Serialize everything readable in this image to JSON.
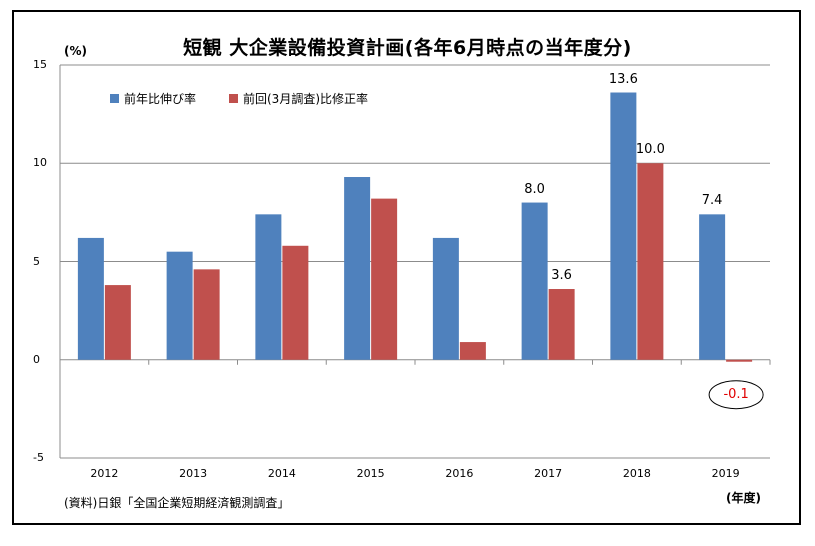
{
  "chart_data": {
    "type": "bar",
    "title": "短観 大企業設備投資計画(各年6月時点の当年度分)",
    "ylabel": "(%)",
    "xlabel": "(年度)",
    "ylim": [
      -5,
      15
    ],
    "yticks": [
      15,
      10,
      5,
      0,
      -5
    ],
    "grid": true,
    "legend_position": "top-left",
    "categories": [
      "2012",
      "2013",
      "2014",
      "2015",
      "2016",
      "2017",
      "2018",
      "2019"
    ],
    "series": [
      {
        "name": "前年比伸び率",
        "color": "#4F81BD",
        "values": [
          6.2,
          5.5,
          7.4,
          9.3,
          6.2,
          8.0,
          13.6,
          7.4
        ]
      },
      {
        "name": "前回(3月調査)比修正率",
        "color": "#C0504D",
        "values": [
          3.8,
          4.6,
          5.8,
          8.2,
          0.9,
          3.6,
          10.0,
          -0.1
        ]
      }
    ],
    "data_labels": [
      {
        "text": "8.0",
        "category": "2017",
        "series": 0
      },
      {
        "text": "3.6",
        "category": "2017",
        "series": 1
      },
      {
        "text": "13.6",
        "category": "2018",
        "series": 0
      },
      {
        "text": "10.0",
        "category": "2018",
        "series": 1
      },
      {
        "text": "7.4",
        "category": "2019",
        "series": 0
      },
      {
        "text": "-0.1",
        "category": "2019",
        "series": 1,
        "highlight": "circled-red"
      }
    ],
    "source": "(資料)日銀「全国企業短期経済観測調査」"
  }
}
